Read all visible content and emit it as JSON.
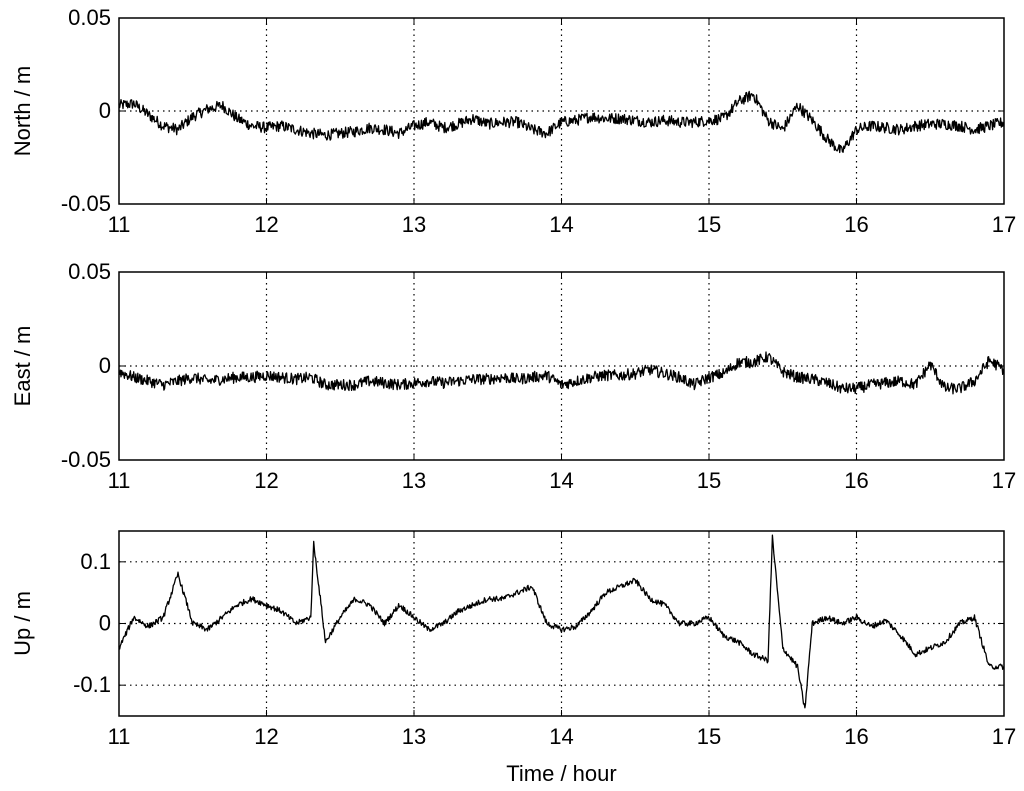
{
  "chart_data": [
    {
      "type": "line",
      "ylabel": "North / m",
      "xlabel": "",
      "xlim": [
        11,
        17
      ],
      "ylim": [
        -0.05,
        0.05
      ],
      "x_ticks": [
        "11",
        "12",
        "13",
        "14",
        "15",
        "16",
        "17"
      ],
      "y_ticks": [
        "-0.05",
        "0",
        "0.05"
      ],
      "grid": true,
      "line_color": "#000000",
      "series": [
        {
          "x": [
            11.0,
            11.1,
            11.2,
            11.3,
            11.4,
            11.5,
            11.6,
            11.7,
            11.8,
            11.9,
            12.0,
            12.1,
            12.2,
            12.3,
            12.4,
            12.5,
            12.6,
            12.7,
            12.8,
            12.9,
            13.0,
            13.1,
            13.2,
            13.3,
            13.4,
            13.5,
            13.6,
            13.7,
            13.8,
            13.9,
            14.0,
            14.1,
            14.2,
            14.3,
            14.4,
            14.5,
            14.6,
            14.7,
            14.8,
            14.9,
            15.0,
            15.1,
            15.2,
            15.3,
            15.4,
            15.5,
            15.6,
            15.7,
            15.8,
            15.9,
            16.0,
            16.1,
            16.2,
            16.3,
            16.4,
            16.5,
            16.6,
            16.7,
            16.8,
            16.9,
            17.0
          ],
          "y": [
            0.003,
            0.004,
            -0.002,
            -0.008,
            -0.01,
            -0.003,
            0.001,
            0.003,
            -0.004,
            -0.008,
            -0.009,
            -0.008,
            -0.01,
            -0.012,
            -0.013,
            -0.012,
            -0.011,
            -0.009,
            -0.01,
            -0.012,
            -0.008,
            -0.006,
            -0.009,
            -0.007,
            -0.004,
            -0.007,
            -0.006,
            -0.006,
            -0.01,
            -0.012,
            -0.006,
            -0.005,
            -0.003,
            -0.004,
            -0.004,
            -0.005,
            -0.006,
            -0.005,
            -0.006,
            -0.006,
            -0.005,
            -0.004,
            0.005,
            0.009,
            -0.005,
            -0.01,
            0.003,
            -0.005,
            -0.015,
            -0.022,
            -0.01,
            -0.008,
            -0.009,
            -0.01,
            -0.008,
            -0.007,
            -0.007,
            -0.008,
            -0.01,
            -0.008,
            -0.006
          ]
        }
      ]
    },
    {
      "type": "line",
      "ylabel": "East / m",
      "xlabel": "",
      "xlim": [
        11,
        17
      ],
      "ylim": [
        -0.05,
        0.05
      ],
      "x_ticks": [
        "11",
        "12",
        "13",
        "14",
        "15",
        "16",
        "17"
      ],
      "y_ticks": [
        "-0.05",
        "0",
        "0.05"
      ],
      "grid": true,
      "line_color": "#000000",
      "series": [
        {
          "x": [
            11.0,
            11.1,
            11.2,
            11.3,
            11.4,
            11.5,
            11.6,
            11.7,
            11.8,
            11.9,
            12.0,
            12.1,
            12.2,
            12.3,
            12.4,
            12.5,
            12.6,
            12.7,
            12.8,
            12.9,
            13.0,
            13.1,
            13.2,
            13.3,
            13.4,
            13.5,
            13.6,
            13.7,
            13.8,
            13.9,
            14.0,
            14.1,
            14.2,
            14.3,
            14.4,
            14.5,
            14.6,
            14.7,
            14.8,
            14.9,
            15.0,
            15.1,
            15.2,
            15.3,
            15.4,
            15.5,
            15.6,
            15.7,
            15.8,
            15.9,
            16.0,
            16.1,
            16.2,
            16.3,
            16.4,
            16.5,
            16.6,
            16.7,
            16.8,
            16.9,
            17.0
          ],
          "y": [
            -0.003,
            -0.006,
            -0.008,
            -0.01,
            -0.008,
            -0.006,
            -0.008,
            -0.007,
            -0.006,
            -0.006,
            -0.005,
            -0.006,
            -0.007,
            -0.006,
            -0.01,
            -0.01,
            -0.01,
            -0.008,
            -0.009,
            -0.01,
            -0.009,
            -0.008,
            -0.009,
            -0.008,
            -0.007,
            -0.007,
            -0.006,
            -0.007,
            -0.006,
            -0.005,
            -0.01,
            -0.008,
            -0.006,
            -0.005,
            -0.005,
            -0.004,
            -0.002,
            -0.004,
            -0.006,
            -0.01,
            -0.006,
            -0.004,
            0.002,
            0.002,
            0.005,
            -0.003,
            -0.006,
            -0.007,
            -0.009,
            -0.012,
            -0.012,
            -0.01,
            -0.009,
            -0.008,
            -0.01,
            0.001,
            -0.012,
            -0.012,
            -0.008,
            0.003,
            -0.002
          ]
        }
      ]
    },
    {
      "type": "line",
      "ylabel": "Up / m",
      "xlabel": "Time / hour",
      "xlim": [
        11,
        17
      ],
      "ylim": [
        -0.15,
        0.15
      ],
      "x_ticks": [
        "11",
        "12",
        "13",
        "14",
        "15",
        "16",
        "17"
      ],
      "y_ticks": [
        "0.1",
        "0",
        "-0.1"
      ],
      "grid": true,
      "line_color": "#000000",
      "series": [
        {
          "x": [
            11.0,
            11.1,
            11.2,
            11.3,
            11.4,
            11.5,
            11.6,
            11.7,
            11.8,
            11.9,
            12.0,
            12.1,
            12.2,
            12.3,
            12.32,
            12.4,
            12.5,
            12.6,
            12.7,
            12.8,
            12.9,
            13.0,
            13.1,
            13.2,
            13.3,
            13.4,
            13.5,
            13.6,
            13.7,
            13.8,
            13.9,
            14.0,
            14.1,
            14.2,
            14.3,
            14.4,
            14.5,
            14.6,
            14.7,
            14.8,
            14.9,
            15.0,
            15.1,
            15.2,
            15.3,
            15.4,
            15.43,
            15.5,
            15.6,
            15.65,
            15.7,
            15.8,
            15.9,
            16.0,
            16.1,
            16.2,
            16.3,
            16.4,
            16.5,
            16.6,
            16.7,
            16.8,
            16.9,
            17.0
          ],
          "y": [
            -0.04,
            0.01,
            -0.005,
            0.01,
            0.08,
            0.0,
            -0.01,
            0.01,
            0.03,
            0.04,
            0.03,
            0.02,
            0.0,
            0.01,
            0.13,
            -0.03,
            0.01,
            0.04,
            0.03,
            0.0,
            0.03,
            0.01,
            -0.01,
            0.0,
            0.02,
            0.03,
            0.04,
            0.04,
            0.05,
            0.06,
            0.0,
            -0.01,
            -0.005,
            0.02,
            0.05,
            0.06,
            0.07,
            0.04,
            0.03,
            0.0,
            0.0,
            0.01,
            -0.02,
            -0.03,
            -0.05,
            -0.06,
            0.14,
            -0.04,
            -0.07,
            -0.14,
            0.0,
            0.01,
            0.0,
            0.01,
            -0.005,
            0.005,
            -0.02,
            -0.05,
            -0.04,
            -0.03,
            0.0,
            0.01,
            -0.07,
            -0.07
          ]
        }
      ]
    }
  ]
}
